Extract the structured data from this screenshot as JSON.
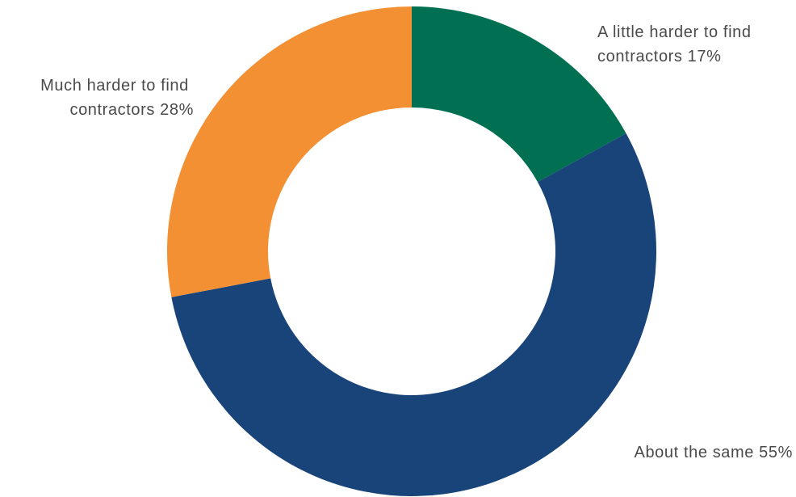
{
  "chart_data": {
    "type": "pie",
    "variant": "donut",
    "slices": [
      {
        "label_lines": [
          "A little harder to find",
          "contractors 17%"
        ],
        "value": 17,
        "color": "#006f52"
      },
      {
        "label_lines": [
          "About the same 55%"
        ],
        "value": 55,
        "color": "#18447a"
      },
      {
        "label_lines": [
          "Much harder to find",
          "contractors 28%"
        ],
        "value": 28,
        "color": "#f29033"
      }
    ],
    "start": "12 o'clock",
    "direction": "clockwise",
    "legend": "none (labels beside slices)"
  }
}
